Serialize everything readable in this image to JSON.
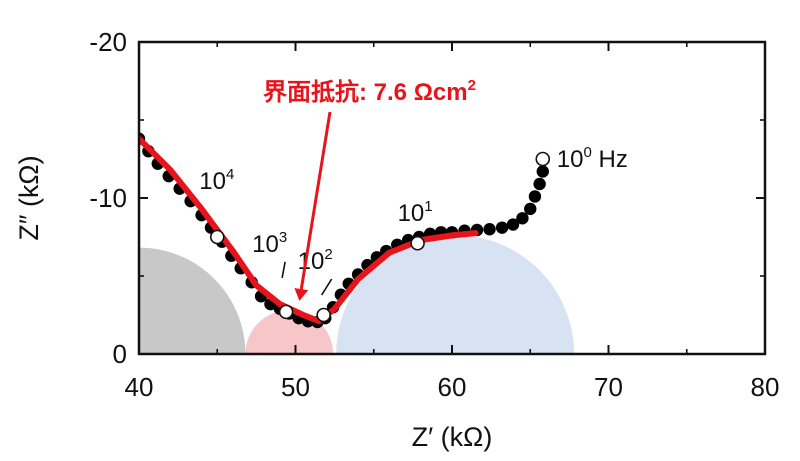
{
  "chart_data": {
    "type": "scatter",
    "xlabel": "Z′ (kΩ)",
    "ylabel": "Z″ (kΩ)",
    "xlim": [
      40,
      80
    ],
    "ylim": [
      0,
      -20
    ],
    "xticks": [
      "40",
      "50",
      "60",
      "70",
      "80"
    ],
    "yticks": [
      "0",
      "-10",
      "-20"
    ],
    "grid": false,
    "series": [
      {
        "kind": "measured-points",
        "color": "#000000",
        "x": [
          40.0,
          40.6,
          41.2,
          41.9,
          42.6,
          43.3,
          44.0,
          44.6,
          45.3,
          45.9,
          46.5,
          47.2,
          47.8,
          48.4,
          49.0,
          49.6,
          50.2,
          50.8,
          51.4,
          51.9,
          52.4,
          52.9,
          53.4,
          54.0,
          54.6,
          55.2,
          55.8,
          56.5,
          57.2,
          57.9,
          58.6,
          59.3,
          60.0,
          60.8,
          61.6,
          62.4,
          63.2,
          63.9,
          64.5,
          65.0,
          65.3,
          65.6,
          65.8
        ],
        "y": [
          -13.8,
          -13.0,
          -12.2,
          -11.4,
          -10.6,
          -9.8,
          -8.9,
          -8.1,
          -7.2,
          -6.3,
          -5.5,
          -4.6,
          -3.7,
          -3.2,
          -2.9,
          -2.6,
          -2.3,
          -2.1,
          -2.05,
          -2.3,
          -3.0,
          -3.8,
          -4.5,
          -5.1,
          -5.7,
          -6.2,
          -6.6,
          -7.0,
          -7.3,
          -7.5,
          -7.7,
          -7.8,
          -7.8,
          -7.9,
          -7.95,
          -8.0,
          -8.1,
          -8.3,
          -8.7,
          -9.3,
          -10.1,
          -10.9,
          -11.7
        ]
      },
      {
        "kind": "fit",
        "color": "#e8141c",
        "x": [
          40.0,
          42.0,
          44.0,
          46.0,
          47.5,
          49.0,
          50.5,
          51.5,
          52.5,
          54.0,
          56.0,
          58.0,
          60.0,
          61.5
        ],
        "y": [
          -13.8,
          -11.8,
          -9.3,
          -6.6,
          -4.4,
          -3.2,
          -2.5,
          -2.1,
          -2.9,
          -4.8,
          -6.5,
          -7.3,
          -7.6,
          -7.75
        ]
      }
    ],
    "frequency_markers": [
      {
        "x": 65.8,
        "y": -12.5,
        "base": "10",
        "exp": "0",
        "unit": " Hz"
      },
      {
        "x": 57.8,
        "y": -7.1,
        "base": "10",
        "exp": "1",
        "unit": ""
      },
      {
        "x": 51.8,
        "y": -2.5,
        "base": "10",
        "exp": "2",
        "unit": ""
      },
      {
        "x": 49.4,
        "y": -2.7,
        "base": "10",
        "exp": "3",
        "unit": ""
      },
      {
        "x": 45.0,
        "y": -7.5,
        "base": "10",
        "exp": "4",
        "unit": ""
      }
    ],
    "shaded_regions": [
      {
        "name": "grey",
        "color": "#c8c8c8",
        "cx": 40.0,
        "r": 6.8
      },
      {
        "name": "pink",
        "color": "#f7c6c8",
        "cx": 49.6,
        "r": 2.8
      },
      {
        "name": "blue",
        "color": "#d7e2f2",
        "cx": 60.2,
        "r": 7.6
      }
    ],
    "annotation": {
      "text_main": "界面抵抗: 7.6 Ωcm",
      "text_sup": "2",
      "color": "#e8141c",
      "arrow_to_x": 50.3
    }
  }
}
